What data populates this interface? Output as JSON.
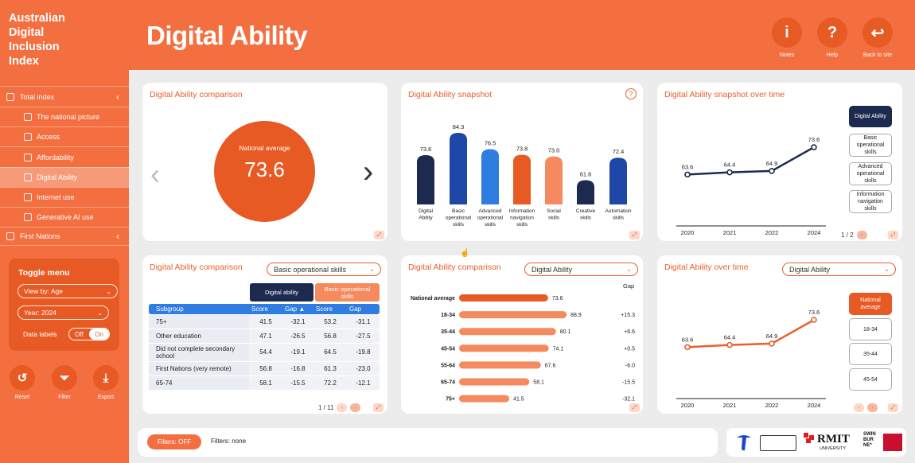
{
  "header": {
    "brand": "Australian\nDigital\nInclusion\nIndex",
    "title": "Digital Ability",
    "buttons": [
      {
        "label": "Notes",
        "glyph": "i"
      },
      {
        "label": "Help",
        "glyph": "?"
      },
      {
        "label": "Back to site",
        "glyph": "↩"
      }
    ]
  },
  "sidebar": {
    "items": [
      {
        "label": "Total index",
        "chev": "‹"
      },
      {
        "label": "The national picture"
      },
      {
        "label": "Access"
      },
      {
        "label": "Affordability"
      },
      {
        "label": "Digital Ability"
      },
      {
        "label": "Internet use"
      },
      {
        "label": "Generative AI use"
      },
      {
        "label": "First Nations",
        "chev": "‹"
      }
    ],
    "toggle": {
      "title": "Toggle menu",
      "view": "View by: Age",
      "year": "Year: 2024",
      "data_labels": "Data labels",
      "off": "Off",
      "on": "On"
    },
    "actions": [
      {
        "label": "Reset",
        "glyph": "↺"
      },
      {
        "label": "Filter",
        "glyph": "⏷"
      },
      {
        "label": "Export",
        "glyph": "⤓"
      }
    ]
  },
  "card1": {
    "title": "Digital Ability comparison",
    "caption": "National average",
    "value": "73.6",
    "prev": "‹",
    "next": "›"
  },
  "card2": {
    "title": "Digital Ability snapshot",
    "help": "?",
    "chart_data": {
      "type": "bar",
      "categories": [
        "Digital Ability",
        "Basic operational skills",
        "Advanced operational skills",
        "Information navigation skills",
        "Social skills",
        "Creative skills",
        "Automation skills"
      ],
      "labels": [
        "Digital\nAbility",
        "Basic\noperational\nskills",
        "Advanced\noperational\nskills",
        "Information\nnavigation\nskills",
        "Social\nskills",
        "Creative\nskills",
        "Automation\nskills"
      ],
      "values": [
        73.6,
        84.3,
        76.5,
        73.8,
        73.0,
        61.6,
        72.4
      ],
      "colors": [
        "#1c2a4f",
        "#1e47a8",
        "#2f7de0",
        "#e85a24",
        "#f58a5e",
        "#1c2a4f",
        "#1e47a8"
      ],
      "ylim": [
        50,
        90
      ]
    }
  },
  "card3": {
    "title": "Digital Ability snapshot over time",
    "page": "1 / 2",
    "legend": [
      "Digital Ability",
      "Basic\noperational\nskills",
      "Advanced\noperational\nskills",
      "Information\nnavigation\nskills"
    ],
    "chart_data": {
      "type": "line",
      "x": [
        "2020",
        "2021",
        "2022",
        "2024"
      ],
      "series": [
        {
          "name": "Digital Ability",
          "values": [
            63.6,
            64.4,
            64.9,
            73.6
          ]
        }
      ],
      "ylim": [
        50,
        85
      ]
    }
  },
  "card4": {
    "title": "Digital Ability comparison",
    "dropdown": "Basic operational skills",
    "group1": "Digital ability",
    "group2": "Basic operational\nskills",
    "columns": [
      "Subgroup",
      "Score",
      "Gap ▲",
      "Score",
      "Gap"
    ],
    "rows": [
      [
        "75+",
        "41.5",
        "-32.1",
        "53.2",
        "-31.1"
      ],
      [
        "Other education",
        "47.1",
        "-26.5",
        "56.8",
        "-27.5"
      ],
      [
        "Did not complete secondary school",
        "54.4",
        "-19.1",
        "64.5",
        "-19.8"
      ],
      [
        "First Nations (very remote)",
        "56.8",
        "-16.8",
        "61.3",
        "-23.0"
      ],
      [
        "65-74",
        "58.1",
        "-15.5",
        "72.2",
        "-12.1"
      ]
    ],
    "page": "1 / 11"
  },
  "card5": {
    "title": "Digital Ability comparison",
    "dropdown": "Digital Ability",
    "gap_header": "Gap",
    "chart_data": {
      "type": "bar",
      "categories": [
        "National average",
        "18-34",
        "35-44",
        "45-54",
        "55-64",
        "65-74",
        "75+"
      ],
      "values": [
        73.6,
        88.9,
        80.1,
        74.1,
        67.6,
        58.1,
        41.5
      ],
      "gaps": [
        "",
        "+15.3",
        "+6.6",
        "+0.5",
        "-6.0",
        "-15.5",
        "-32.1"
      ],
      "xlim": [
        0,
        100
      ]
    }
  },
  "card6": {
    "title": "Digital Ability over time",
    "dropdown": "Digital Ability",
    "legend": [
      "National\naverage",
      "18-34",
      "35-44",
      "45-54"
    ],
    "chart_data": {
      "type": "line",
      "x": [
        "2020",
        "2021",
        "2022",
        "2024"
      ],
      "series": [
        {
          "name": "National average",
          "values": [
            63.6,
            64.4,
            64.9,
            73.6
          ]
        }
      ],
      "ylim": [
        50,
        85
      ]
    }
  },
  "footer": {
    "filter_button": "Filters: OFF",
    "filter_text": "Filters: none"
  },
  "logos": {
    "rmit": "RMIT",
    "rmit_sub": "UNIVERSITY",
    "swin": "SWIN\nBUR\nNE*"
  }
}
